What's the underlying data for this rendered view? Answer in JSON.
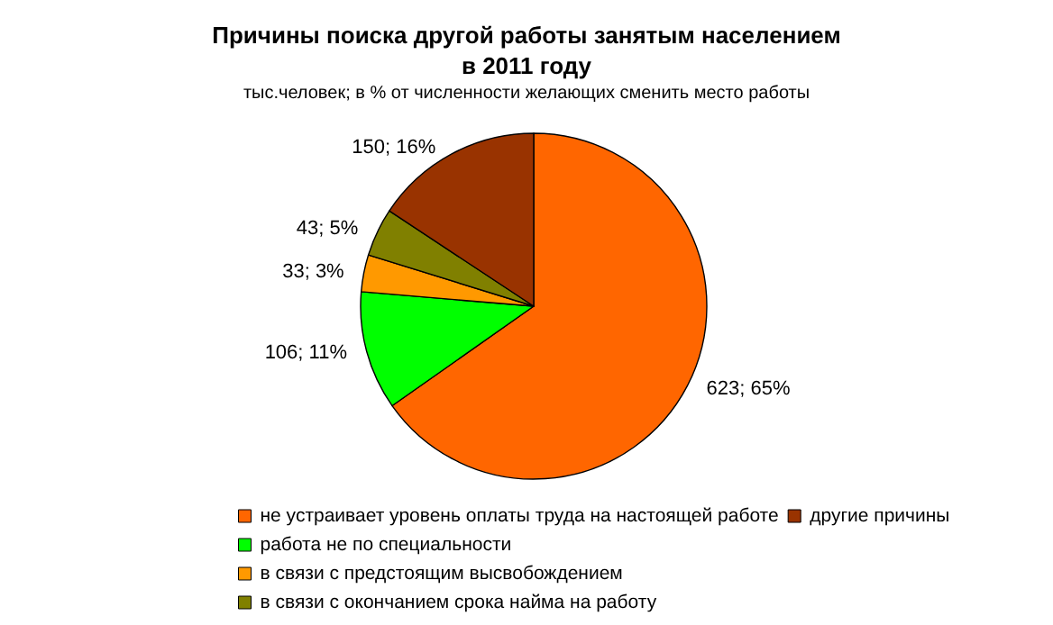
{
  "chart_data": {
    "type": "pie",
    "title": "Причины поиска другой работы занятым населением\nв 2011 году",
    "subtitle": "тыс.человек; в % от численности желающих сменить место работы",
    "categories": [
      "не устраивает уровень оплаты труда на настоящей работе",
      "работа не по специальности",
      "в связи с предстоящим высвобождением",
      "в связи с окончанием срока найма на работу",
      "другие причины"
    ],
    "values": [
      623,
      106,
      33,
      43,
      150
    ],
    "value_labels": [
      "623; 65%",
      "106; 11%",
      "33; 3%",
      "43; 5%",
      "150; 16%"
    ],
    "colors": [
      "#ff6600",
      "#00ff00",
      "#ff9900",
      "#808000",
      "#993300"
    ],
    "legend": "bottom"
  }
}
